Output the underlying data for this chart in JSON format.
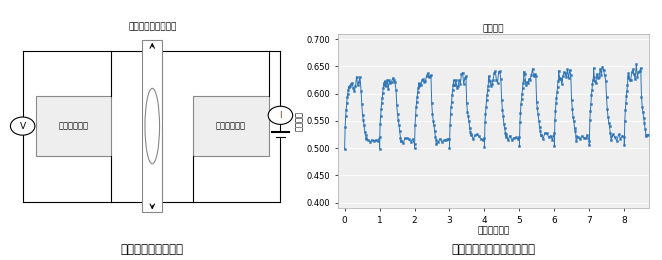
{
  "left_title": "抵触抵抗測定模式図",
  "right_title": "抵触抵抗の経時変化グラフ",
  "diagram": {
    "v_label": "V",
    "i_label": "I",
    "board_label": "プリント基板",
    "connector_label": "プレスフィット端子"
  },
  "graph": {
    "title": "測定端子",
    "xlabel": "試験サイクル",
    "ylabel": "抵触抵抗",
    "yticks": [
      0.4,
      0.45,
      0.5,
      0.55,
      0.6,
      0.65,
      0.7
    ],
    "xticks": [
      0,
      1,
      2,
      3,
      4,
      5,
      6,
      7,
      8
    ],
    "ylim": [
      0.39,
      0.71
    ],
    "xlim": [
      -0.2,
      8.7
    ],
    "line_color": "#2E75B6",
    "bg_color": "#EFEFEF"
  }
}
